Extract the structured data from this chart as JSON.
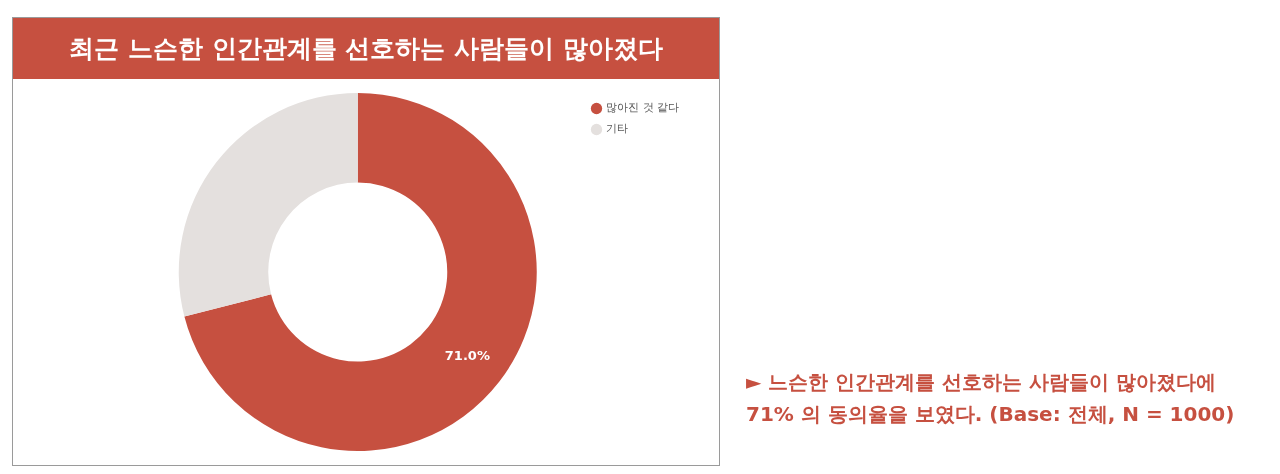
{
  "chart_data": {
    "type": "donut",
    "title": "최근 느슨한 인간관계를 선호하는 사람들이 많아졌다",
    "categories": [
      "많아진 것 같다",
      "기타"
    ],
    "values": [
      71,
      29
    ],
    "colors": [
      "#c65040",
      "#e4e0de"
    ],
    "value_labels": [
      "71.0%",
      null
    ],
    "legend": "top right",
    "annotations": [
      "► 느슨한 인간관계를 선호하는 사람들이 많아졌다에 71% 의 동의율을 보였다. (Base: 전체, N = 1000)"
    ]
  }
}
